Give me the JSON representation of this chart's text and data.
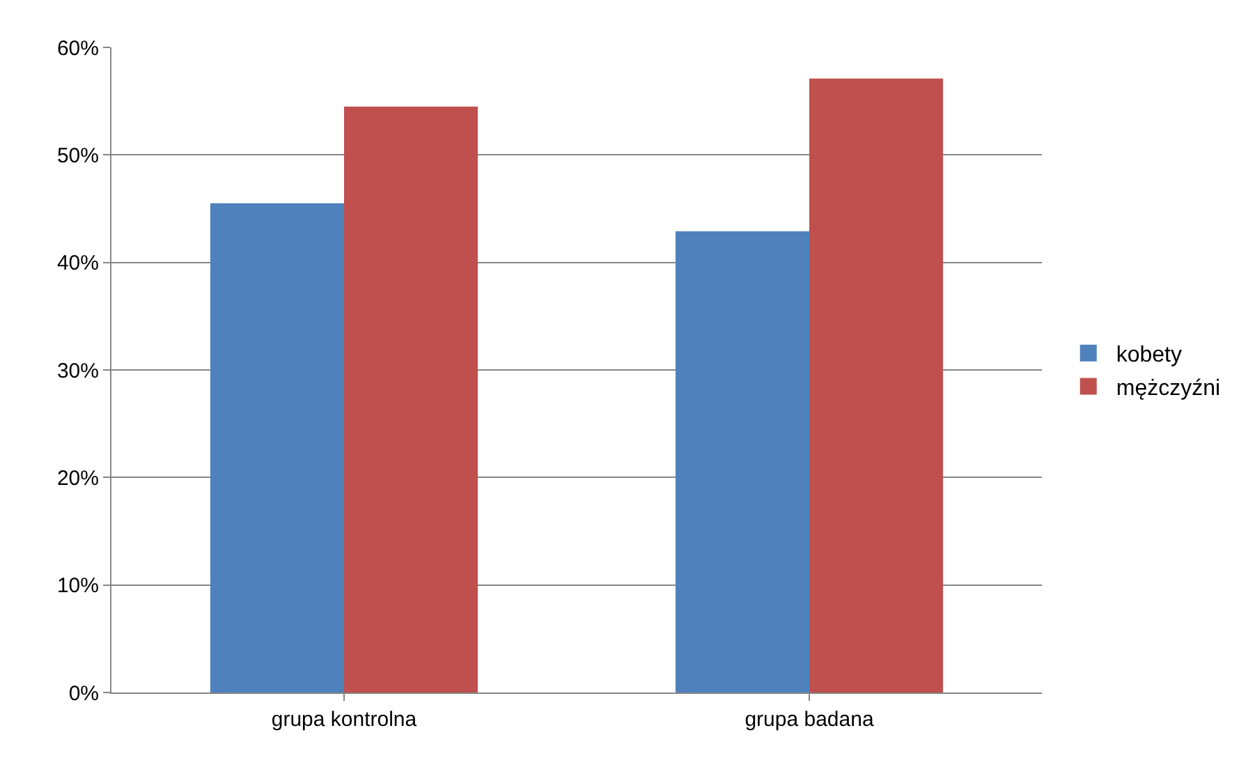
{
  "chart_data": {
    "type": "bar",
    "categories": [
      "grupa kontrolna",
      "grupa badana"
    ],
    "series": [
      {
        "name": "kobety",
        "color": "#4f81bd",
        "values": [
          45.5,
          42.9
        ]
      },
      {
        "name": "mężczyźni",
        "color": "#c0504d",
        "values": [
          54.5,
          57.1
        ]
      }
    ],
    "ylim": [
      0,
      60
    ],
    "yticks": [
      {
        "value": 0,
        "label": "0%"
      },
      {
        "value": 10,
        "label": "10%"
      },
      {
        "value": 20,
        "label": "20%"
      },
      {
        "value": 30,
        "label": "30%"
      },
      {
        "value": 40,
        "label": "40%"
      },
      {
        "value": 50,
        "label": "50%"
      },
      {
        "value": 60,
        "label": "60%"
      }
    ],
    "grid": "y",
    "legend": "right"
  }
}
